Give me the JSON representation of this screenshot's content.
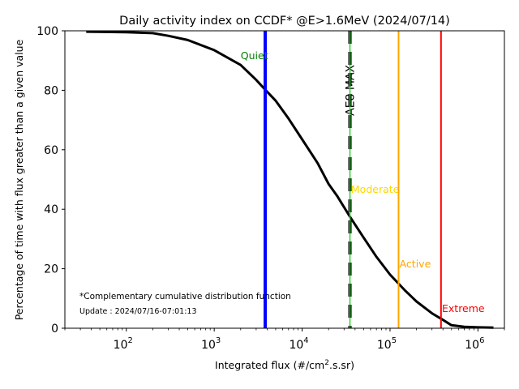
{
  "chart_data": {
    "type": "line",
    "title": "Daily activity index on CCDF* @E>1.6MeV (2024/07/14)",
    "xlabel_main": "Integrated flux (#/cm",
    "xlabel_sup": "2",
    "xlabel_tail": ".s.sr)",
    "ylabel": "Percentage of time with flux greater than a given value",
    "x_scale": "log",
    "xlim": [
      20,
      2000000
    ],
    "ylim": [
      0,
      100
    ],
    "x_ticks": [
      {
        "value": 100,
        "base": "10",
        "exp": "2"
      },
      {
        "value": 1000,
        "base": "10",
        "exp": "3"
      },
      {
        "value": 10000,
        "base": "10",
        "exp": "4"
      },
      {
        "value": 100000,
        "base": "10",
        "exp": "5"
      },
      {
        "value": 1000000,
        "base": "10",
        "exp": "6"
      }
    ],
    "y_ticks": [
      {
        "value": 0,
        "label": "0"
      },
      {
        "value": 20,
        "label": "20"
      },
      {
        "value": 40,
        "label": "40"
      },
      {
        "value": 60,
        "label": "60"
      },
      {
        "value": 80,
        "label": "80"
      },
      {
        "value": 100,
        "label": "100"
      }
    ],
    "grid": false,
    "series": [
      {
        "color": "#000000",
        "x": [
          35,
          100,
          200,
          300,
          500,
          1000,
          2000,
          3000,
          4000,
          5000,
          7000,
          10000,
          15000,
          20000,
          25000,
          35000,
          50000,
          70000,
          100000,
          150000,
          200000,
          300000,
          400000,
          500000,
          700000,
          1000000,
          1500000
        ],
        "y": [
          99.7,
          99.5,
          99.2,
          98.3,
          96.9,
          93.5,
          88.5,
          83.5,
          79.5,
          76.5,
          70.5,
          63.5,
          55.5,
          48.5,
          44.5,
          37.5,
          30.5,
          24.0,
          18.0,
          12.5,
          9.0,
          5.0,
          2.8,
          1.0,
          0.5,
          0.3,
          0.2
        ]
      }
    ],
    "thresholds": [
      {
        "label": "Quiet",
        "x": 3800,
        "color": "#0000ff",
        "label_color": "#008000",
        "label_x": 2000,
        "label_y": 90.5
      },
      {
        "label": "AE8 MAX",
        "x": 35000,
        "color": "#000000",
        "label_color": "#000000",
        "dashed": true,
        "label_x": 35000,
        "label_y": 80
      },
      {
        "label": "Moderate",
        "x": 35000,
        "color": "#32cd32",
        "label_color": "#ffd700",
        "label_x": 36000,
        "label_y": 45.5
      },
      {
        "label": "Active",
        "x": 125000,
        "color": "#ffa500",
        "label_color": "#ffa500",
        "label_x": 128000,
        "label_y": 20.5
      },
      {
        "label": "Extreme",
        "x": 380000,
        "color": "#ff0000",
        "label_color": "#ff0000",
        "label_x": 390000,
        "label_y": 5.5
      }
    ],
    "annotations": [
      {
        "text": "*Complementary cumulative distribution function"
      },
      {
        "text": "Update : 2024/07/16-07:01:13"
      }
    ]
  }
}
